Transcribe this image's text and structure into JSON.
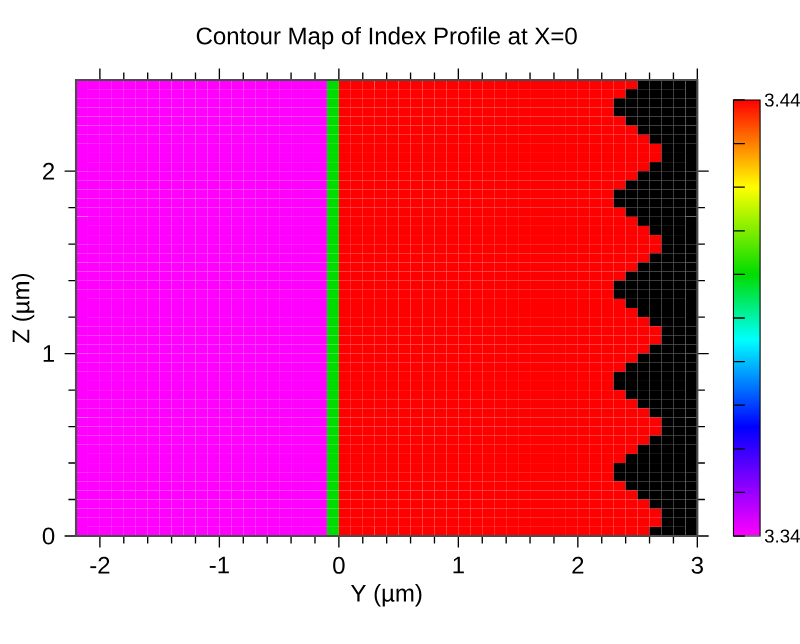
{
  "chart_data": {
    "type": "heatmap",
    "title": "Contour Map of Index Profile at X=0",
    "xlabel": "Y (µm)",
    "ylabel": "Z (µm)",
    "x": [
      -2.15,
      -2.05,
      -1.95,
      -1.85,
      -1.75,
      -1.65,
      -1.55,
      -1.45,
      -1.35,
      -1.25,
      -1.15,
      -1.05,
      -0.95,
      -0.85,
      -0.75,
      -0.65,
      -0.55,
      -0.45,
      -0.35,
      -0.25,
      -0.15,
      -0.05,
      0.05,
      0.15,
      0.25,
      0.35,
      0.45,
      0.55,
      0.65,
      0.75,
      0.85,
      0.95,
      1.05,
      1.15,
      1.25,
      1.35,
      1.45,
      1.55,
      1.65,
      1.75,
      1.85,
      1.95,
      2.05,
      2.15,
      2.25,
      2.35,
      2.45,
      2.55,
      2.65,
      2.75,
      2.85,
      2.95
    ],
    "y": [
      2.475,
      2.425,
      2.375,
      2.325,
      2.275,
      2.225,
      2.175,
      2.125,
      2.075,
      2.025,
      1.975,
      1.925,
      1.875,
      1.825,
      1.775,
      1.725,
      1.675,
      1.625,
      1.575,
      1.525,
      1.475,
      1.425,
      1.375,
      1.325,
      1.275,
      1.225,
      1.175,
      1.125,
      1.075,
      1.025,
      0.975,
      0.925,
      0.875,
      0.825,
      0.775,
      0.725,
      0.675,
      0.625,
      0.575,
      0.525,
      0.475,
      0.425,
      0.375,
      0.325,
      0.275,
      0.225,
      0.175,
      0.125,
      0.075,
      0.025
    ],
    "cells": [
      [
        3.34,
        3.34,
        3.34,
        3.34,
        3.34,
        3.34,
        3.34,
        3.34,
        3.34,
        3.34,
        3.34,
        3.34,
        3.34,
        3.34,
        3.34,
        3.34,
        3.34,
        3.34,
        3.34,
        3.34,
        3.34,
        3.4,
        3.44,
        3.44,
        3.44,
        3.44,
        3.44,
        3.44,
        3.44,
        3.44,
        3.44,
        3.44,
        3.44,
        3.44,
        3.44,
        3.44,
        3.44,
        3.44,
        3.44,
        3.44,
        3.44,
        3.44,
        3.44,
        3.44,
        3.44,
        3.44,
        3.44,
        null,
        null,
        null,
        null,
        null
      ],
      [
        3.34,
        3.34,
        3.34,
        3.34,
        3.34,
        3.34,
        3.34,
        3.34,
        3.34,
        3.34,
        3.34,
        3.34,
        3.34,
        3.34,
        3.34,
        3.34,
        3.34,
        3.34,
        3.34,
        3.34,
        3.34,
        3.4,
        3.44,
        3.44,
        3.44,
        3.44,
        3.44,
        3.44,
        3.44,
        3.44,
        3.44,
        3.44,
        3.44,
        3.44,
        3.44,
        3.44,
        3.44,
        3.44,
        3.44,
        3.44,
        3.44,
        3.44,
        3.44,
        3.44,
        3.44,
        3.44,
        null,
        null,
        null,
        null,
        null,
        null
      ],
      [
        3.34,
        3.34,
        3.34,
        3.34,
        3.34,
        3.34,
        3.34,
        3.34,
        3.34,
        3.34,
        3.34,
        3.34,
        3.34,
        3.34,
        3.34,
        3.34,
        3.34,
        3.34,
        3.34,
        3.34,
        3.34,
        3.4,
        3.44,
        3.44,
        3.44,
        3.44,
        3.44,
        3.44,
        3.44,
        3.44,
        3.44,
        3.44,
        3.44,
        3.44,
        3.44,
        3.44,
        3.44,
        3.44,
        3.44,
        3.44,
        3.44,
        3.44,
        3.44,
        3.44,
        3.44,
        null,
        null,
        null,
        null,
        null,
        null,
        null
      ],
      [
        3.34,
        3.34,
        3.34,
        3.34,
        3.34,
        3.34,
        3.34,
        3.34,
        3.34,
        3.34,
        3.34,
        3.34,
        3.34,
        3.34,
        3.34,
        3.34,
        3.34,
        3.34,
        3.34,
        3.34,
        3.34,
        3.4,
        3.44,
        3.44,
        3.44,
        3.44,
        3.44,
        3.44,
        3.44,
        3.44,
        3.44,
        3.44,
        3.44,
        3.44,
        3.44,
        3.44,
        3.44,
        3.44,
        3.44,
        3.44,
        3.44,
        3.44,
        3.44,
        3.44,
        3.44,
        null,
        null,
        null,
        null,
        null,
        null,
        null
      ],
      [
        3.34,
        3.34,
        3.34,
        3.34,
        3.34,
        3.34,
        3.34,
        3.34,
        3.34,
        3.34,
        3.34,
        3.34,
        3.34,
        3.34,
        3.34,
        3.34,
        3.34,
        3.34,
        3.34,
        3.34,
        3.34,
        3.4,
        3.44,
        3.44,
        3.44,
        3.44,
        3.44,
        3.44,
        3.44,
        3.44,
        3.44,
        3.44,
        3.44,
        3.44,
        3.44,
        3.44,
        3.44,
        3.44,
        3.44,
        3.44,
        3.44,
        3.44,
        3.44,
        3.44,
        3.44,
        3.44,
        null,
        null,
        null,
        null,
        null,
        null
      ],
      [
        3.34,
        3.34,
        3.34,
        3.34,
        3.34,
        3.34,
        3.34,
        3.34,
        3.34,
        3.34,
        3.34,
        3.34,
        3.34,
        3.34,
        3.34,
        3.34,
        3.34,
        3.34,
        3.34,
        3.34,
        3.34,
        3.4,
        3.44,
        3.44,
        3.44,
        3.44,
        3.44,
        3.44,
        3.44,
        3.44,
        3.44,
        3.44,
        3.44,
        3.44,
        3.44,
        3.44,
        3.44,
        3.44,
        3.44,
        3.44,
        3.44,
        3.44,
        3.44,
        3.44,
        3.44,
        3.44,
        3.44,
        null,
        null,
        null,
        null,
        null
      ],
      [
        3.34,
        3.34,
        3.34,
        3.34,
        3.34,
        3.34,
        3.34,
        3.34,
        3.34,
        3.34,
        3.34,
        3.34,
        3.34,
        3.34,
        3.34,
        3.34,
        3.34,
        3.34,
        3.34,
        3.34,
        3.34,
        3.4,
        3.44,
        3.44,
        3.44,
        3.44,
        3.44,
        3.44,
        3.44,
        3.44,
        3.44,
        3.44,
        3.44,
        3.44,
        3.44,
        3.44,
        3.44,
        3.44,
        3.44,
        3.44,
        3.44,
        3.44,
        3.44,
        3.44,
        3.44,
        3.44,
        3.44,
        3.44,
        null,
        null,
        null,
        null
      ],
      [
        3.34,
        3.34,
        3.34,
        3.34,
        3.34,
        3.34,
        3.34,
        3.34,
        3.34,
        3.34,
        3.34,
        3.34,
        3.34,
        3.34,
        3.34,
        3.34,
        3.34,
        3.34,
        3.34,
        3.34,
        3.34,
        3.4,
        3.44,
        3.44,
        3.44,
        3.44,
        3.44,
        3.44,
        3.44,
        3.44,
        3.44,
        3.44,
        3.44,
        3.44,
        3.44,
        3.44,
        3.44,
        3.44,
        3.44,
        3.44,
        3.44,
        3.44,
        3.44,
        3.44,
        3.44,
        3.44,
        3.44,
        3.44,
        3.44,
        null,
        null,
        null
      ],
      [
        3.34,
        3.34,
        3.34,
        3.34,
        3.34,
        3.34,
        3.34,
        3.34,
        3.34,
        3.34,
        3.34,
        3.34,
        3.34,
        3.34,
        3.34,
        3.34,
        3.34,
        3.34,
        3.34,
        3.34,
        3.34,
        3.4,
        3.44,
        3.44,
        3.44,
        3.44,
        3.44,
        3.44,
        3.44,
        3.44,
        3.44,
        3.44,
        3.44,
        3.44,
        3.44,
        3.44,
        3.44,
        3.44,
        3.44,
        3.44,
        3.44,
        3.44,
        3.44,
        3.44,
        3.44,
        3.44,
        3.44,
        3.44,
        3.44,
        null,
        null,
        null
      ],
      [
        3.34,
        3.34,
        3.34,
        3.34,
        3.34,
        3.34,
        3.34,
        3.34,
        3.34,
        3.34,
        3.34,
        3.34,
        3.34,
        3.34,
        3.34,
        3.34,
        3.34,
        3.34,
        3.34,
        3.34,
        3.34,
        3.4,
        3.44,
        3.44,
        3.44,
        3.44,
        3.44,
        3.44,
        3.44,
        3.44,
        3.44,
        3.44,
        3.44,
        3.44,
        3.44,
        3.44,
        3.44,
        3.44,
        3.44,
        3.44,
        3.44,
        3.44,
        3.44,
        3.44,
        3.44,
        3.44,
        3.44,
        3.44,
        null,
        null,
        null,
        null
      ],
      [
        3.34,
        3.34,
        3.34,
        3.34,
        3.34,
        3.34,
        3.34,
        3.34,
        3.34,
        3.34,
        3.34,
        3.34,
        3.34,
        3.34,
        3.34,
        3.34,
        3.34,
        3.34,
        3.34,
        3.34,
        3.34,
        3.4,
        3.44,
        3.44,
        3.44,
        3.44,
        3.44,
        3.44,
        3.44,
        3.44,
        3.44,
        3.44,
        3.44,
        3.44,
        3.44,
        3.44,
        3.44,
        3.44,
        3.44,
        3.44,
        3.44,
        3.44,
        3.44,
        3.44,
        3.44,
        3.44,
        3.44,
        null,
        null,
        null,
        null,
        null
      ],
      [
        3.34,
        3.34,
        3.34,
        3.34,
        3.34,
        3.34,
        3.34,
        3.34,
        3.34,
        3.34,
        3.34,
        3.34,
        3.34,
        3.34,
        3.34,
        3.34,
        3.34,
        3.34,
        3.34,
        3.34,
        3.34,
        3.4,
        3.44,
        3.44,
        3.44,
        3.44,
        3.44,
        3.44,
        3.44,
        3.44,
        3.44,
        3.44,
        3.44,
        3.44,
        3.44,
        3.44,
        3.44,
        3.44,
        3.44,
        3.44,
        3.44,
        3.44,
        3.44,
        3.44,
        3.44,
        3.44,
        null,
        null,
        null,
        null,
        null,
        null
      ],
      [
        3.34,
        3.34,
        3.34,
        3.34,
        3.34,
        3.34,
        3.34,
        3.34,
        3.34,
        3.34,
        3.34,
        3.34,
        3.34,
        3.34,
        3.34,
        3.34,
        3.34,
        3.34,
        3.34,
        3.34,
        3.34,
        3.4,
        3.44,
        3.44,
        3.44,
        3.44,
        3.44,
        3.44,
        3.44,
        3.44,
        3.44,
        3.44,
        3.44,
        3.44,
        3.44,
        3.44,
        3.44,
        3.44,
        3.44,
        3.44,
        3.44,
        3.44,
        3.44,
        3.44,
        3.44,
        null,
        null,
        null,
        null,
        null,
        null,
        null
      ],
      [
        3.34,
        3.34,
        3.34,
        3.34,
        3.34,
        3.34,
        3.34,
        3.34,
        3.34,
        3.34,
        3.34,
        3.34,
        3.34,
        3.34,
        3.34,
        3.34,
        3.34,
        3.34,
        3.34,
        3.34,
        3.34,
        3.4,
        3.44,
        3.44,
        3.44,
        3.44,
        3.44,
        3.44,
        3.44,
        3.44,
        3.44,
        3.44,
        3.44,
        3.44,
        3.44,
        3.44,
        3.44,
        3.44,
        3.44,
        3.44,
        3.44,
        3.44,
        3.44,
        3.44,
        3.44,
        null,
        null,
        null,
        null,
        null,
        null,
        null
      ],
      [
        3.34,
        3.34,
        3.34,
        3.34,
        3.34,
        3.34,
        3.34,
        3.34,
        3.34,
        3.34,
        3.34,
        3.34,
        3.34,
        3.34,
        3.34,
        3.34,
        3.34,
        3.34,
        3.34,
        3.34,
        3.34,
        3.4,
        3.44,
        3.44,
        3.44,
        3.44,
        3.44,
        3.44,
        3.44,
        3.44,
        3.44,
        3.44,
        3.44,
        3.44,
        3.44,
        3.44,
        3.44,
        3.44,
        3.44,
        3.44,
        3.44,
        3.44,
        3.44,
        3.44,
        3.44,
        3.44,
        null,
        null,
        null,
        null,
        null,
        null
      ],
      [
        3.34,
        3.34,
        3.34,
        3.34,
        3.34,
        3.34,
        3.34,
        3.34,
        3.34,
        3.34,
        3.34,
        3.34,
        3.34,
        3.34,
        3.34,
        3.34,
        3.34,
        3.34,
        3.34,
        3.34,
        3.34,
        3.4,
        3.44,
        3.44,
        3.44,
        3.44,
        3.44,
        3.44,
        3.44,
        3.44,
        3.44,
        3.44,
        3.44,
        3.44,
        3.44,
        3.44,
        3.44,
        3.44,
        3.44,
        3.44,
        3.44,
        3.44,
        3.44,
        3.44,
        3.44,
        3.44,
        3.44,
        null,
        null,
        null,
        null,
        null
      ],
      [
        3.34,
        3.34,
        3.34,
        3.34,
        3.34,
        3.34,
        3.34,
        3.34,
        3.34,
        3.34,
        3.34,
        3.34,
        3.34,
        3.34,
        3.34,
        3.34,
        3.34,
        3.34,
        3.34,
        3.34,
        3.34,
        3.4,
        3.44,
        3.44,
        3.44,
        3.44,
        3.44,
        3.44,
        3.44,
        3.44,
        3.44,
        3.44,
        3.44,
        3.44,
        3.44,
        3.44,
        3.44,
        3.44,
        3.44,
        3.44,
        3.44,
        3.44,
        3.44,
        3.44,
        3.44,
        3.44,
        3.44,
        3.44,
        null,
        null,
        null,
        null
      ],
      [
        3.34,
        3.34,
        3.34,
        3.34,
        3.34,
        3.34,
        3.34,
        3.34,
        3.34,
        3.34,
        3.34,
        3.34,
        3.34,
        3.34,
        3.34,
        3.34,
        3.34,
        3.34,
        3.34,
        3.34,
        3.34,
        3.4,
        3.44,
        3.44,
        3.44,
        3.44,
        3.44,
        3.44,
        3.44,
        3.44,
        3.44,
        3.44,
        3.44,
        3.44,
        3.44,
        3.44,
        3.44,
        3.44,
        3.44,
        3.44,
        3.44,
        3.44,
        3.44,
        3.44,
        3.44,
        3.44,
        3.44,
        3.44,
        3.44,
        null,
        null,
        null
      ],
      [
        3.34,
        3.34,
        3.34,
        3.34,
        3.34,
        3.34,
        3.34,
        3.34,
        3.34,
        3.34,
        3.34,
        3.34,
        3.34,
        3.34,
        3.34,
        3.34,
        3.34,
        3.34,
        3.34,
        3.34,
        3.34,
        3.4,
        3.44,
        3.44,
        3.44,
        3.44,
        3.44,
        3.44,
        3.44,
        3.44,
        3.44,
        3.44,
        3.44,
        3.44,
        3.44,
        3.44,
        3.44,
        3.44,
        3.44,
        3.44,
        3.44,
        3.44,
        3.44,
        3.44,
        3.44,
        3.44,
        3.44,
        3.44,
        3.44,
        null,
        null,
        null
      ],
      [
        3.34,
        3.34,
        3.34,
        3.34,
        3.34,
        3.34,
        3.34,
        3.34,
        3.34,
        3.34,
        3.34,
        3.34,
        3.34,
        3.34,
        3.34,
        3.34,
        3.34,
        3.34,
        3.34,
        3.34,
        3.34,
        3.4,
        3.44,
        3.44,
        3.44,
        3.44,
        3.44,
        3.44,
        3.44,
        3.44,
        3.44,
        3.44,
        3.44,
        3.44,
        3.44,
        3.44,
        3.44,
        3.44,
        3.44,
        3.44,
        3.44,
        3.44,
        3.44,
        3.44,
        3.44,
        3.44,
        3.44,
        3.44,
        null,
        null,
        null,
        null
      ],
      [
        3.34,
        3.34,
        3.34,
        3.34,
        3.34,
        3.34,
        3.34,
        3.34,
        3.34,
        3.34,
        3.34,
        3.34,
        3.34,
        3.34,
        3.34,
        3.34,
        3.34,
        3.34,
        3.34,
        3.34,
        3.34,
        3.4,
        3.44,
        3.44,
        3.44,
        3.44,
        3.44,
        3.44,
        3.44,
        3.44,
        3.44,
        3.44,
        3.44,
        3.44,
        3.44,
        3.44,
        3.44,
        3.44,
        3.44,
        3.44,
        3.44,
        3.44,
        3.44,
        3.44,
        3.44,
        3.44,
        3.44,
        null,
        null,
        null,
        null,
        null
      ],
      [
        3.34,
        3.34,
        3.34,
        3.34,
        3.34,
        3.34,
        3.34,
        3.34,
        3.34,
        3.34,
        3.34,
        3.34,
        3.34,
        3.34,
        3.34,
        3.34,
        3.34,
        3.34,
        3.34,
        3.34,
        3.34,
        3.4,
        3.44,
        3.44,
        3.44,
        3.44,
        3.44,
        3.44,
        3.44,
        3.44,
        3.44,
        3.44,
        3.44,
        3.44,
        3.44,
        3.44,
        3.44,
        3.44,
        3.44,
        3.44,
        3.44,
        3.44,
        3.44,
        3.44,
        3.44,
        3.44,
        null,
        null,
        null,
        null,
        null,
        null
      ],
      [
        3.34,
        3.34,
        3.34,
        3.34,
        3.34,
        3.34,
        3.34,
        3.34,
        3.34,
        3.34,
        3.34,
        3.34,
        3.34,
        3.34,
        3.34,
        3.34,
        3.34,
        3.34,
        3.34,
        3.34,
        3.34,
        3.4,
        3.44,
        3.44,
        3.44,
        3.44,
        3.44,
        3.44,
        3.44,
        3.44,
        3.44,
        3.44,
        3.44,
        3.44,
        3.44,
        3.44,
        3.44,
        3.44,
        3.44,
        3.44,
        3.44,
        3.44,
        3.44,
        3.44,
        3.44,
        null,
        null,
        null,
        null,
        null,
        null,
        null
      ],
      [
        3.34,
        3.34,
        3.34,
        3.34,
        3.34,
        3.34,
        3.34,
        3.34,
        3.34,
        3.34,
        3.34,
        3.34,
        3.34,
        3.34,
        3.34,
        3.34,
        3.34,
        3.34,
        3.34,
        3.34,
        3.34,
        3.4,
        3.44,
        3.44,
        3.44,
        3.44,
        3.44,
        3.44,
        3.44,
        3.44,
        3.44,
        3.44,
        3.44,
        3.44,
        3.44,
        3.44,
        3.44,
        3.44,
        3.44,
        3.44,
        3.44,
        3.44,
        3.44,
        3.44,
        3.44,
        null,
        null,
        null,
        null,
        null,
        null,
        null
      ],
      [
        3.34,
        3.34,
        3.34,
        3.34,
        3.34,
        3.34,
        3.34,
        3.34,
        3.34,
        3.34,
        3.34,
        3.34,
        3.34,
        3.34,
        3.34,
        3.34,
        3.34,
        3.34,
        3.34,
        3.34,
        3.34,
        3.4,
        3.44,
        3.44,
        3.44,
        3.44,
        3.44,
        3.44,
        3.44,
        3.44,
        3.44,
        3.44,
        3.44,
        3.44,
        3.44,
        3.44,
        3.44,
        3.44,
        3.44,
        3.44,
        3.44,
        3.44,
        3.44,
        3.44,
        3.44,
        3.44,
        null,
        null,
        null,
        null,
        null,
        null
      ],
      [
        3.34,
        3.34,
        3.34,
        3.34,
        3.34,
        3.34,
        3.34,
        3.34,
        3.34,
        3.34,
        3.34,
        3.34,
        3.34,
        3.34,
        3.34,
        3.34,
        3.34,
        3.34,
        3.34,
        3.34,
        3.34,
        3.4,
        3.44,
        3.44,
        3.44,
        3.44,
        3.44,
        3.44,
        3.44,
        3.44,
        3.44,
        3.44,
        3.44,
        3.44,
        3.44,
        3.44,
        3.44,
        3.44,
        3.44,
        3.44,
        3.44,
        3.44,
        3.44,
        3.44,
        3.44,
        3.44,
        3.44,
        null,
        null,
        null,
        null,
        null
      ],
      [
        3.34,
        3.34,
        3.34,
        3.34,
        3.34,
        3.34,
        3.34,
        3.34,
        3.34,
        3.34,
        3.34,
        3.34,
        3.34,
        3.34,
        3.34,
        3.34,
        3.34,
        3.34,
        3.34,
        3.34,
        3.34,
        3.4,
        3.44,
        3.44,
        3.44,
        3.44,
        3.44,
        3.44,
        3.44,
        3.44,
        3.44,
        3.44,
        3.44,
        3.44,
        3.44,
        3.44,
        3.44,
        3.44,
        3.44,
        3.44,
        3.44,
        3.44,
        3.44,
        3.44,
        3.44,
        3.44,
        3.44,
        3.44,
        null,
        null,
        null,
        null
      ],
      [
        3.34,
        3.34,
        3.34,
        3.34,
        3.34,
        3.34,
        3.34,
        3.34,
        3.34,
        3.34,
        3.34,
        3.34,
        3.34,
        3.34,
        3.34,
        3.34,
        3.34,
        3.34,
        3.34,
        3.34,
        3.34,
        3.4,
        3.44,
        3.44,
        3.44,
        3.44,
        3.44,
        3.44,
        3.44,
        3.44,
        3.44,
        3.44,
        3.44,
        3.44,
        3.44,
        3.44,
        3.44,
        3.44,
        3.44,
        3.44,
        3.44,
        3.44,
        3.44,
        3.44,
        3.44,
        3.44,
        3.44,
        3.44,
        3.44,
        null,
        null,
        null
      ],
      [
        3.34,
        3.34,
        3.34,
        3.34,
        3.34,
        3.34,
        3.34,
        3.34,
        3.34,
        3.34,
        3.34,
        3.34,
        3.34,
        3.34,
        3.34,
        3.34,
        3.34,
        3.34,
        3.34,
        3.34,
        3.34,
        3.4,
        3.44,
        3.44,
        3.44,
        3.44,
        3.44,
        3.44,
        3.44,
        3.44,
        3.44,
        3.44,
        3.44,
        3.44,
        3.44,
        3.44,
        3.44,
        3.44,
        3.44,
        3.44,
        3.44,
        3.44,
        3.44,
        3.44,
        3.44,
        3.44,
        3.44,
        3.44,
        3.44,
        null,
        null,
        null
      ],
      [
        3.34,
        3.34,
        3.34,
        3.34,
        3.34,
        3.34,
        3.34,
        3.34,
        3.34,
        3.34,
        3.34,
        3.34,
        3.34,
        3.34,
        3.34,
        3.34,
        3.34,
        3.34,
        3.34,
        3.34,
        3.34,
        3.4,
        3.44,
        3.44,
        3.44,
        3.44,
        3.44,
        3.44,
        3.44,
        3.44,
        3.44,
        3.44,
        3.44,
        3.44,
        3.44,
        3.44,
        3.44,
        3.44,
        3.44,
        3.44,
        3.44,
        3.44,
        3.44,
        3.44,
        3.44,
        3.44,
        3.44,
        3.44,
        null,
        null,
        null,
        null
      ],
      [
        3.34,
        3.34,
        3.34,
        3.34,
        3.34,
        3.34,
        3.34,
        3.34,
        3.34,
        3.34,
        3.34,
        3.34,
        3.34,
        3.34,
        3.34,
        3.34,
        3.34,
        3.34,
        3.34,
        3.34,
        3.34,
        3.4,
        3.44,
        3.44,
        3.44,
        3.44,
        3.44,
        3.44,
        3.44,
        3.44,
        3.44,
        3.44,
        3.44,
        3.44,
        3.44,
        3.44,
        3.44,
        3.44,
        3.44,
        3.44,
        3.44,
        3.44,
        3.44,
        3.44,
        3.44,
        3.44,
        3.44,
        null,
        null,
        null,
        null,
        null
      ],
      [
        3.34,
        3.34,
        3.34,
        3.34,
        3.34,
        3.34,
        3.34,
        3.34,
        3.34,
        3.34,
        3.34,
        3.34,
        3.34,
        3.34,
        3.34,
        3.34,
        3.34,
        3.34,
        3.34,
        3.34,
        3.34,
        3.4,
        3.44,
        3.44,
        3.44,
        3.44,
        3.44,
        3.44,
        3.44,
        3.44,
        3.44,
        3.44,
        3.44,
        3.44,
        3.44,
        3.44,
        3.44,
        3.44,
        3.44,
        3.44,
        3.44,
        3.44,
        3.44,
        3.44,
        3.44,
        3.44,
        null,
        null,
        null,
        null,
        null,
        null
      ],
      [
        3.34,
        3.34,
        3.34,
        3.34,
        3.34,
        3.34,
        3.34,
        3.34,
        3.34,
        3.34,
        3.34,
        3.34,
        3.34,
        3.34,
        3.34,
        3.34,
        3.34,
        3.34,
        3.34,
        3.34,
        3.34,
        3.4,
        3.44,
        3.44,
        3.44,
        3.44,
        3.44,
        3.44,
        3.44,
        3.44,
        3.44,
        3.44,
        3.44,
        3.44,
        3.44,
        3.44,
        3.44,
        3.44,
        3.44,
        3.44,
        3.44,
        3.44,
        3.44,
        3.44,
        3.44,
        null,
        null,
        null,
        null,
        null,
        null,
        null
      ],
      [
        3.34,
        3.34,
        3.34,
        3.34,
        3.34,
        3.34,
        3.34,
        3.34,
        3.34,
        3.34,
        3.34,
        3.34,
        3.34,
        3.34,
        3.34,
        3.34,
        3.34,
        3.34,
        3.34,
        3.34,
        3.34,
        3.4,
        3.44,
        3.44,
        3.44,
        3.44,
        3.44,
        3.44,
        3.44,
        3.44,
        3.44,
        3.44,
        3.44,
        3.44,
        3.44,
        3.44,
        3.44,
        3.44,
        3.44,
        3.44,
        3.44,
        3.44,
        3.44,
        3.44,
        3.44,
        null,
        null,
        null,
        null,
        null,
        null,
        null
      ],
      [
        3.34,
        3.34,
        3.34,
        3.34,
        3.34,
        3.34,
        3.34,
        3.34,
        3.34,
        3.34,
        3.34,
        3.34,
        3.34,
        3.34,
        3.34,
        3.34,
        3.34,
        3.34,
        3.34,
        3.34,
        3.34,
        3.4,
        3.44,
        3.44,
        3.44,
        3.44,
        3.44,
        3.44,
        3.44,
        3.44,
        3.44,
        3.44,
        3.44,
        3.44,
        3.44,
        3.44,
        3.44,
        3.44,
        3.44,
        3.44,
        3.44,
        3.44,
        3.44,
        3.44,
        3.44,
        3.44,
        null,
        null,
        null,
        null,
        null,
        null
      ],
      [
        3.34,
        3.34,
        3.34,
        3.34,
        3.34,
        3.34,
        3.34,
        3.34,
        3.34,
        3.34,
        3.34,
        3.34,
        3.34,
        3.34,
        3.34,
        3.34,
        3.34,
        3.34,
        3.34,
        3.34,
        3.34,
        3.4,
        3.44,
        3.44,
        3.44,
        3.44,
        3.44,
        3.44,
        3.44,
        3.44,
        3.44,
        3.44,
        3.44,
        3.44,
        3.44,
        3.44,
        3.44,
        3.44,
        3.44,
        3.44,
        3.44,
        3.44,
        3.44,
        3.44,
        3.44,
        3.44,
        3.44,
        null,
        null,
        null,
        null,
        null
      ],
      [
        3.34,
        3.34,
        3.34,
        3.34,
        3.34,
        3.34,
        3.34,
        3.34,
        3.34,
        3.34,
        3.34,
        3.34,
        3.34,
        3.34,
        3.34,
        3.34,
        3.34,
        3.34,
        3.34,
        3.34,
        3.34,
        3.4,
        3.44,
        3.44,
        3.44,
        3.44,
        3.44,
        3.44,
        3.44,
        3.44,
        3.44,
        3.44,
        3.44,
        3.44,
        3.44,
        3.44,
        3.44,
        3.44,
        3.44,
        3.44,
        3.44,
        3.44,
        3.44,
        3.44,
        3.44,
        3.44,
        3.44,
        3.44,
        null,
        null,
        null,
        null
      ],
      [
        3.34,
        3.34,
        3.34,
        3.34,
        3.34,
        3.34,
        3.34,
        3.34,
        3.34,
        3.34,
        3.34,
        3.34,
        3.34,
        3.34,
        3.34,
        3.34,
        3.34,
        3.34,
        3.34,
        3.34,
        3.34,
        3.4,
        3.44,
        3.44,
        3.44,
        3.44,
        3.44,
        3.44,
        3.44,
        3.44,
        3.44,
        3.44,
        3.44,
        3.44,
        3.44,
        3.44,
        3.44,
        3.44,
        3.44,
        3.44,
        3.44,
        3.44,
        3.44,
        3.44,
        3.44,
        3.44,
        3.44,
        3.44,
        3.44,
        null,
        null,
        null
      ],
      [
        3.34,
        3.34,
        3.34,
        3.34,
        3.34,
        3.34,
        3.34,
        3.34,
        3.34,
        3.34,
        3.34,
        3.34,
        3.34,
        3.34,
        3.34,
        3.34,
        3.34,
        3.34,
        3.34,
        3.34,
        3.34,
        3.4,
        3.44,
        3.44,
        3.44,
        3.44,
        3.44,
        3.44,
        3.44,
        3.44,
        3.44,
        3.44,
        3.44,
        3.44,
        3.44,
        3.44,
        3.44,
        3.44,
        3.44,
        3.44,
        3.44,
        3.44,
        3.44,
        3.44,
        3.44,
        3.44,
        3.44,
        3.44,
        3.44,
        null,
        null,
        null
      ],
      [
        3.34,
        3.34,
        3.34,
        3.34,
        3.34,
        3.34,
        3.34,
        3.34,
        3.34,
        3.34,
        3.34,
        3.34,
        3.34,
        3.34,
        3.34,
        3.34,
        3.34,
        3.34,
        3.34,
        3.34,
        3.34,
        3.4,
        3.44,
        3.44,
        3.44,
        3.44,
        3.44,
        3.44,
        3.44,
        3.44,
        3.44,
        3.44,
        3.44,
        3.44,
        3.44,
        3.44,
        3.44,
        3.44,
        3.44,
        3.44,
        3.44,
        3.44,
        3.44,
        3.44,
        3.44,
        3.44,
        3.44,
        3.44,
        null,
        null,
        null,
        null
      ],
      [
        3.34,
        3.34,
        3.34,
        3.34,
        3.34,
        3.34,
        3.34,
        3.34,
        3.34,
        3.34,
        3.34,
        3.34,
        3.34,
        3.34,
        3.34,
        3.34,
        3.34,
        3.34,
        3.34,
        3.34,
        3.34,
        3.4,
        3.44,
        3.44,
        3.44,
        3.44,
        3.44,
        3.44,
        3.44,
        3.44,
        3.44,
        3.44,
        3.44,
        3.44,
        3.44,
        3.44,
        3.44,
        3.44,
        3.44,
        3.44,
        3.44,
        3.44,
        3.44,
        3.44,
        3.44,
        3.44,
        3.44,
        null,
        null,
        null,
        null,
        null
      ],
      [
        3.34,
        3.34,
        3.34,
        3.34,
        3.34,
        3.34,
        3.34,
        3.34,
        3.34,
        3.34,
        3.34,
        3.34,
        3.34,
        3.34,
        3.34,
        3.34,
        3.34,
        3.34,
        3.34,
        3.34,
        3.34,
        3.4,
        3.44,
        3.44,
        3.44,
        3.44,
        3.44,
        3.44,
        3.44,
        3.44,
        3.44,
        3.44,
        3.44,
        3.44,
        3.44,
        3.44,
        3.44,
        3.44,
        3.44,
        3.44,
        3.44,
        3.44,
        3.44,
        3.44,
        3.44,
        3.44,
        null,
        null,
        null,
        null,
        null,
        null
      ],
      [
        3.34,
        3.34,
        3.34,
        3.34,
        3.34,
        3.34,
        3.34,
        3.34,
        3.34,
        3.34,
        3.34,
        3.34,
        3.34,
        3.34,
        3.34,
        3.34,
        3.34,
        3.34,
        3.34,
        3.34,
        3.34,
        3.4,
        3.44,
        3.44,
        3.44,
        3.44,
        3.44,
        3.44,
        3.44,
        3.44,
        3.44,
        3.44,
        3.44,
        3.44,
        3.44,
        3.44,
        3.44,
        3.44,
        3.44,
        3.44,
        3.44,
        3.44,
        3.44,
        3.44,
        3.44,
        null,
        null,
        null,
        null,
        null,
        null,
        null
      ],
      [
        3.34,
        3.34,
        3.34,
        3.34,
        3.34,
        3.34,
        3.34,
        3.34,
        3.34,
        3.34,
        3.34,
        3.34,
        3.34,
        3.34,
        3.34,
        3.34,
        3.34,
        3.34,
        3.34,
        3.34,
        3.34,
        3.4,
        3.44,
        3.44,
        3.44,
        3.44,
        3.44,
        3.44,
        3.44,
        3.44,
        3.44,
        3.44,
        3.44,
        3.44,
        3.44,
        3.44,
        3.44,
        3.44,
        3.44,
        3.44,
        3.44,
        3.44,
        3.44,
        3.44,
        3.44,
        null,
        null,
        null,
        null,
        null,
        null,
        null
      ],
      [
        3.34,
        3.34,
        3.34,
        3.34,
        3.34,
        3.34,
        3.34,
        3.34,
        3.34,
        3.34,
        3.34,
        3.34,
        3.34,
        3.34,
        3.34,
        3.34,
        3.34,
        3.34,
        3.34,
        3.34,
        3.34,
        3.4,
        3.44,
        3.44,
        3.44,
        3.44,
        3.44,
        3.44,
        3.44,
        3.44,
        3.44,
        3.44,
        3.44,
        3.44,
        3.44,
        3.44,
        3.44,
        3.44,
        3.44,
        3.44,
        3.44,
        3.44,
        3.44,
        3.44,
        3.44,
        3.44,
        null,
        null,
        null,
        null,
        null,
        null
      ],
      [
        3.34,
        3.34,
        3.34,
        3.34,
        3.34,
        3.34,
        3.34,
        3.34,
        3.34,
        3.34,
        3.34,
        3.34,
        3.34,
        3.34,
        3.34,
        3.34,
        3.34,
        3.34,
        3.34,
        3.34,
        3.34,
        3.4,
        3.44,
        3.44,
        3.44,
        3.44,
        3.44,
        3.44,
        3.44,
        3.44,
        3.44,
        3.44,
        3.44,
        3.44,
        3.44,
        3.44,
        3.44,
        3.44,
        3.44,
        3.44,
        3.44,
        3.44,
        3.44,
        3.44,
        3.44,
        3.44,
        3.44,
        null,
        null,
        null,
        null,
        null
      ],
      [
        3.34,
        3.34,
        3.34,
        3.34,
        3.34,
        3.34,
        3.34,
        3.34,
        3.34,
        3.34,
        3.34,
        3.34,
        3.34,
        3.34,
        3.34,
        3.34,
        3.34,
        3.34,
        3.34,
        3.34,
        3.34,
        3.4,
        3.44,
        3.44,
        3.44,
        3.44,
        3.44,
        3.44,
        3.44,
        3.44,
        3.44,
        3.44,
        3.44,
        3.44,
        3.44,
        3.44,
        3.44,
        3.44,
        3.44,
        3.44,
        3.44,
        3.44,
        3.44,
        3.44,
        3.44,
        3.44,
        3.44,
        3.44,
        null,
        null,
        null,
        null
      ],
      [
        3.34,
        3.34,
        3.34,
        3.34,
        3.34,
        3.34,
        3.34,
        3.34,
        3.34,
        3.34,
        3.34,
        3.34,
        3.34,
        3.34,
        3.34,
        3.34,
        3.34,
        3.34,
        3.34,
        3.34,
        3.34,
        3.4,
        3.44,
        3.44,
        3.44,
        3.44,
        3.44,
        3.44,
        3.44,
        3.44,
        3.44,
        3.44,
        3.44,
        3.44,
        3.44,
        3.44,
        3.44,
        3.44,
        3.44,
        3.44,
        3.44,
        3.44,
        3.44,
        3.44,
        3.44,
        3.44,
        3.44,
        3.44,
        3.44,
        null,
        null,
        null
      ],
      [
        3.34,
        3.34,
        3.34,
        3.34,
        3.34,
        3.34,
        3.34,
        3.34,
        3.34,
        3.34,
        3.34,
        3.34,
        3.34,
        3.34,
        3.34,
        3.34,
        3.34,
        3.34,
        3.34,
        3.34,
        3.34,
        3.4,
        3.44,
        3.44,
        3.44,
        3.44,
        3.44,
        3.44,
        3.44,
        3.44,
        3.44,
        3.44,
        3.44,
        3.44,
        3.44,
        3.44,
        3.44,
        3.44,
        3.44,
        3.44,
        3.44,
        3.44,
        3.44,
        3.44,
        3.44,
        3.44,
        3.44,
        3.44,
        3.44,
        null,
        null,
        null
      ],
      [
        3.34,
        3.34,
        3.34,
        3.34,
        3.34,
        3.34,
        3.34,
        3.34,
        3.34,
        3.34,
        3.34,
        3.34,
        3.34,
        3.34,
        3.34,
        3.34,
        3.34,
        3.34,
        3.34,
        3.34,
        3.34,
        3.4,
        3.44,
        3.44,
        3.44,
        3.44,
        3.44,
        3.44,
        3.44,
        3.44,
        3.44,
        3.44,
        3.44,
        3.44,
        3.44,
        3.44,
        3.44,
        3.44,
        3.44,
        3.44,
        3.44,
        3.44,
        3.44,
        3.44,
        3.44,
        3.44,
        3.44,
        3.44,
        null,
        null,
        null,
        null
      ]
    ],
    "clim": [
      3.34,
      3.44
    ],
    "cticks": [
      3.34,
      {
        "value": 3.35,
        "label": null
      },
      {
        "value": 3.36,
        "label": null
      },
      {
        "value": 3.37,
        "label": null
      },
      {
        "value": 3.38,
        "label": null
      },
      {
        "value": 3.39,
        "label": null
      },
      {
        "value": 3.4,
        "label": null
      },
      {
        "value": 3.41,
        "label": null
      },
      {
        "value": 3.42,
        "label": null
      },
      {
        "value": 3.43,
        "label": null
      },
      3.44
    ],
    "xlim": [
      -2.2,
      3.0
    ],
    "ylim": [
      0,
      2.5
    ],
    "xticks": [
      -2,
      -1,
      0,
      1,
      2,
      3
    ],
    "yticks": [
      0,
      1,
      2
    ]
  }
}
